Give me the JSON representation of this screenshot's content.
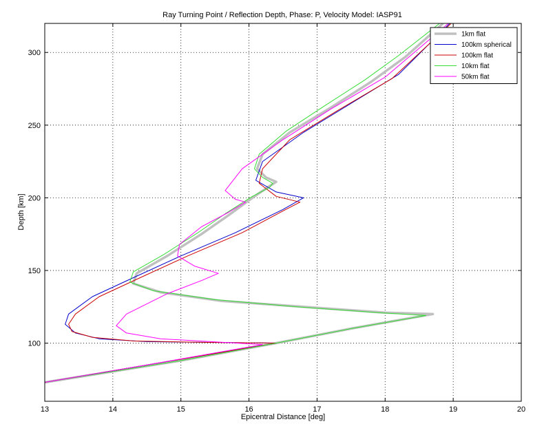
{
  "chart_data": {
    "type": "line",
    "title": "Ray Turning Point / Reflection Depth, Phase: P, Velocity Model: IASP91",
    "xlabel": "Epicentral Distance [deg]",
    "ylabel": "Depth [km]",
    "xlim": [
      13,
      20
    ],
    "ylim": [
      320,
      60
    ],
    "y_reversed": true,
    "grid": true,
    "legend_position": "top-right",
    "x_ticks": [
      13,
      14,
      15,
      16,
      17,
      18,
      19,
      20
    ],
    "y_ticks": [
      100,
      150,
      200,
      250,
      300
    ],
    "series": [
      {
        "name": "1km flat",
        "color": "#c0c0c0",
        "width": 3.5,
        "x": [
          13.0,
          15.0,
          16.4,
          17.5,
          18.7,
          18.0,
          16.8,
          15.6,
          14.7,
          14.3,
          14.35,
          14.8,
          15.3,
          15.7,
          16.05,
          16.3,
          16.4,
          16.25,
          16.12,
          16.2,
          16.6,
          17.2,
          17.8,
          18.3,
          18.85
        ],
        "y": [
          73,
          88,
          100,
          110,
          120,
          121,
          125,
          129,
          135,
          141,
          148,
          160,
          175,
          188,
          200,
          208,
          211,
          214,
          220,
          230,
          245,
          262,
          280,
          297,
          320
        ]
      },
      {
        "name": "100km spherical",
        "color": "#0000cc",
        "width": 1,
        "x": [
          13.0,
          14.5,
          16.4,
          15.5,
          14.5,
          13.8,
          13.45,
          13.3,
          13.35,
          13.7,
          14.3,
          15.0,
          15.8,
          16.5,
          16.8,
          16.4,
          16.1,
          16.2,
          16.8,
          17.5,
          18.2,
          18.95
        ],
        "y": [
          73,
          85,
          100,
          100.5,
          101,
          103,
          107,
          113,
          120,
          132,
          145,
          160,
          176,
          192,
          200,
          204,
          212,
          225,
          245,
          265,
          285,
          320
        ]
      },
      {
        "name": "100km flat",
        "color": "#cc0000",
        "width": 1,
        "x": [
          13.0,
          14.5,
          16.4,
          15.4,
          14.3,
          13.7,
          13.4,
          13.35,
          13.45,
          13.8,
          14.4,
          15.1,
          15.9,
          16.5,
          16.75,
          16.4,
          16.15,
          16.2,
          16.6,
          17.3,
          18.1,
          18.97
        ],
        "y": [
          73,
          85,
          100,
          100.5,
          101.5,
          104,
          108,
          113,
          120,
          132,
          145,
          160,
          176,
          191,
          197,
          201,
          210,
          220,
          240,
          260,
          282,
          320
        ]
      },
      {
        "name": "10km flat",
        "color": "#33dd33",
        "width": 1,
        "x": [
          13.0,
          15.0,
          16.4,
          17.5,
          18.6,
          17.9,
          16.7,
          15.5,
          14.6,
          14.25,
          14.3,
          14.75,
          15.25,
          15.65,
          16.05,
          16.3,
          16.35,
          16.2,
          16.08,
          16.15,
          16.55,
          17.1,
          17.7,
          18.2,
          18.8
        ],
        "y": [
          73,
          88,
          100,
          110,
          119,
          121,
          125,
          130,
          136,
          142,
          149,
          161,
          176,
          189,
          201,
          207,
          210,
          214,
          220,
          230,
          246,
          263,
          281,
          298,
          320
        ]
      },
      {
        "name": "50km flat",
        "color": "#ff00ff",
        "width": 1,
        "x": [
          13.0,
          14.5,
          16.2,
          14.7,
          14.2,
          14.05,
          14.2,
          14.8,
          15.3,
          15.55,
          15.2,
          14.95,
          14.98,
          15.3,
          15.7,
          15.95,
          15.8,
          15.65,
          15.9,
          16.5,
          17.2,
          18.0,
          18.93
        ],
        "y": [
          73,
          85,
          99,
          103,
          107,
          112,
          120,
          134,
          143,
          148,
          153,
          160,
          168,
          180,
          190,
          197,
          199,
          205,
          220,
          240,
          261,
          283,
          320
        ]
      }
    ]
  }
}
